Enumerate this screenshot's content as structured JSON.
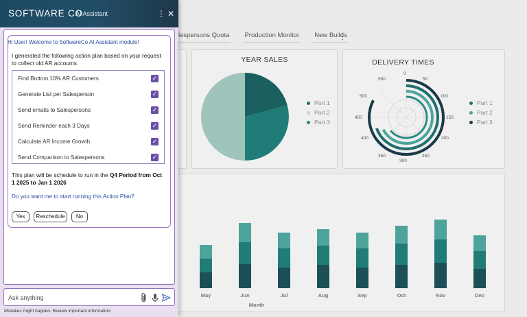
{
  "dashboard": {
    "tabs": [
      "lespersons Quota",
      "Production Monitor",
      "New Builds"
    ],
    "year_sales": {
      "title": "YEAR SALES",
      "legend": [
        {
          "label": "Part 1",
          "color": "#1f6f6f"
        },
        {
          "label": "Part 2",
          "color": "#9fc4bb"
        },
        {
          "label": "Part 3",
          "color": "#2a8a82"
        }
      ]
    },
    "delivery_times": {
      "title": "DELIVERY TIMES",
      "ticks": [
        "0",
        "50",
        "100",
        "150",
        "200",
        "250",
        "300",
        "350",
        "400",
        "450",
        "500",
        "550"
      ],
      "legend": [
        {
          "label": "Part 1",
          "color": "#1f6f6f"
        },
        {
          "label": "Part 2",
          "color": "#4ea39b"
        },
        {
          "label": "Part 3",
          "color": "#1b3a48"
        }
      ]
    },
    "monthly": {
      "xlabel": "Month",
      "months": [
        "May",
        "Jun",
        "Jul",
        "Aug",
        "Sep",
        "Oct",
        "Nov",
        "Dec"
      ]
    }
  },
  "panel": {
    "brand": "SOFTWARE CO",
    "subtitle": "AI Assistant",
    "greeting": "Hi User! Welcome to SoftwareCo AI Assistant module!",
    "intro": "I generated the following action plan based on your request to collect old AR accounts",
    "plan_items": [
      {
        "label": "Find Bottom 10% AR Customers",
        "checked": true
      },
      {
        "label": "Generate List per Salesperson",
        "checked": true
      },
      {
        "label": "Send emails to Salespersons",
        "checked": true
      },
      {
        "label": "Send Reminder each 3 Days",
        "checked": true
      },
      {
        "label": "Calculate AR Income Growth",
        "checked": true
      },
      {
        "label": "Send Comparison to Salespersons",
        "checked": true
      }
    ],
    "schedule_prefix": "This plan will be schedule to run in the ",
    "schedule_bold": "Q4 Period from Oct 1 2025 to Jan 1 2026",
    "question": "Do you want me to start running this Action Plan?",
    "buttons": {
      "yes": "Yes",
      "reschedule": "Reschedule",
      "no": "No"
    },
    "composer_placeholder": "Ask anything",
    "disclaimer": "Mistakes might happen. Review important information."
  }
}
